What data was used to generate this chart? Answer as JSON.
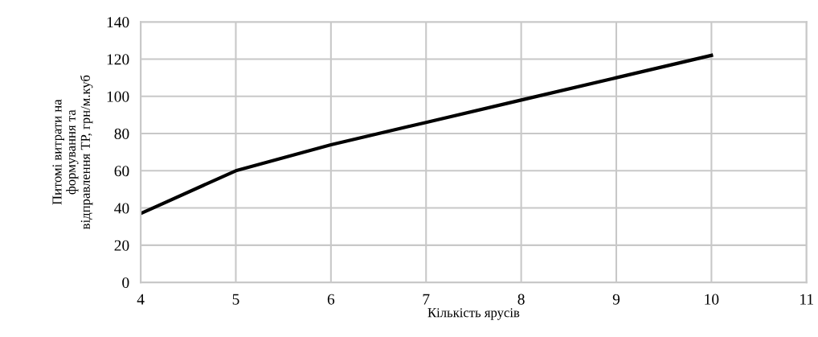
{
  "chart_data": {
    "type": "line",
    "xlabel": "Кількість ярусів",
    "ylabel": "Питомі витрати на\nформування та\nвідправлення ТР, грн/м.куб",
    "x": [
      4,
      5,
      6,
      7,
      8,
      9,
      10
    ],
    "series": [
      {
        "color": "#000000",
        "values": [
          37,
          60,
          74,
          86,
          98,
          110,
          122
        ]
      }
    ],
    "xlim": [
      4,
      11
    ],
    "xticks": [
      4,
      5,
      6,
      7,
      8,
      9,
      10,
      11
    ],
    "ylim": [
      0,
      140
    ],
    "yticks": [
      0,
      20,
      40,
      60,
      80,
      100,
      120,
      140
    ],
    "grid": true,
    "marker": "none",
    "line_style": "solid",
    "legend": false
  }
}
